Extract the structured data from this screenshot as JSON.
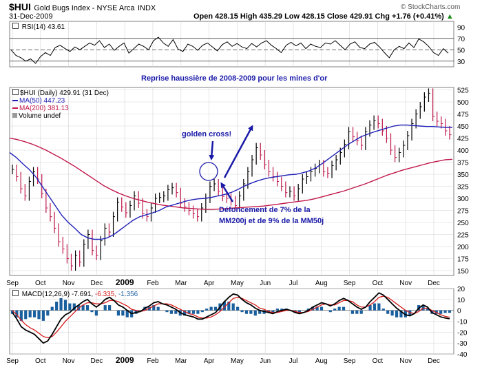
{
  "header": {
    "symbol": "$HUI",
    "name": "Gold Bugs Index - NYSE Arca",
    "exchange": "INDX",
    "date": "31-Dec-2009",
    "ohlc_text": "Open 428.15  High 435.29  Low 428.15  Close 429.91  Chg +1.76 (+0.41%)",
    "ohlc_arrow": "▲",
    "watermark": "© StockCharts.com"
  },
  "colors": {
    "price": "#000000",
    "ma50": "#1f1fb8",
    "ma200": "#c0174a",
    "macd_signal": "#d61a1a",
    "histogram": "#1a5f9e",
    "annotation": "#1a1aa8",
    "grid": "#d4d4d4"
  },
  "rsi_panel": {
    "label": "RSI(14) 43.61",
    "icon": "checkbox-icon"
  },
  "price_panel": {
    "title_annotation": "Reprise haussière de 2008-2009 pour les mines d'or",
    "legend": {
      "price": "$HUI (Daily) 429.91 (31 Dec)",
      "ma50": "MA(50) 447.23",
      "ma200": "MA(200) 381.13",
      "volume": "Volume undef"
    },
    "annotation_golden": "golden cross!",
    "annotation_break_1": "Défoncement de 7% de la",
    "annotation_break_2": "MM200j et de 9% de la MM50j"
  },
  "macd_panel": {
    "label_prefix": "MACD(12,26,9)",
    "macd_value": "-7.691,",
    "signal_value": "-6.335,",
    "hist_value": "-1.356"
  },
  "chart_data": [
    {
      "type": "line",
      "name": "RSI(14)",
      "ylim": [
        20,
        100
      ],
      "y_ticks": [
        "90",
        "70",
        "50",
        "30"
      ],
      "x_ticks": [
        "Sep",
        "Oct",
        "Nov",
        "Dec",
        "2009",
        "Feb",
        "Mar",
        "Apr",
        "May",
        "Jun",
        "Jul",
        "Aug",
        "Sep",
        "Oct",
        "Nov",
        "Dec"
      ],
      "reference_lines": [
        70,
        50,
        30
      ],
      "values": [
        50,
        40,
        36,
        30,
        34,
        26,
        38,
        45,
        40,
        54,
        58,
        52,
        47,
        55,
        50,
        56,
        62,
        58,
        66,
        54,
        60,
        49,
        56,
        62,
        44,
        52,
        60,
        56,
        50,
        66,
        72,
        62,
        56,
        68,
        51,
        47,
        60,
        56,
        49,
        58,
        62,
        55,
        48,
        59,
        64,
        56,
        61,
        55,
        52,
        61,
        55,
        62,
        66,
        58,
        52,
        45,
        58,
        63,
        57,
        62,
        52,
        60,
        56,
        54,
        62,
        60,
        66,
        58,
        50,
        60,
        64,
        54,
        52,
        60,
        63,
        55,
        45,
        36,
        50,
        56,
        52,
        62,
        54,
        69,
        64,
        56,
        45,
        40,
        52,
        44
      ]
    },
    {
      "type": "line",
      "name": "$HUI (Daily)",
      "ylim": [
        140,
        530
      ],
      "y_ticks": [
        "525",
        "500",
        "475",
        "450",
        "425",
        "400",
        "375",
        "350",
        "325",
        "300",
        "275",
        "250",
        "225",
        "200",
        "175",
        "150"
      ],
      "x_ticks": [
        "Sep",
        "Oct",
        "Nov",
        "Dec",
        "2009",
        "Feb",
        "Mar",
        "Apr",
        "May",
        "Jun",
        "Jul",
        "Aug",
        "Sep",
        "Oct",
        "Nov",
        "Dec"
      ],
      "close": [
        360,
        345,
        320,
        305,
        335,
        355,
        340,
        310,
        280,
        262,
        238,
        210,
        195,
        175,
        160,
        182,
        168,
        205,
        225,
        192,
        182,
        212,
        238,
        230,
        262,
        292,
        282,
        270,
        285,
        305,
        290,
        268,
        262,
        280,
        300,
        302,
        305,
        318,
        322,
        312,
        290,
        282,
        275,
        268,
        262,
        280,
        300,
        325,
        330,
        315,
        304,
        300,
        295,
        285,
        305,
        330,
        355,
        380,
        405,
        390,
        370,
        355,
        345,
        335,
        325,
        312,
        315,
        305,
        320,
        340,
        345,
        355,
        362,
        370,
        355,
        352,
        368,
        380,
        395,
        412,
        438,
        428,
        420,
        410,
        438,
        452,
        462,
        455,
        440,
        425,
        400,
        385,
        395,
        410,
        430,
        455,
        475,
        490,
        510,
        518,
        470,
        460,
        455,
        440,
        432
      ],
      "ma50": [
        395,
        385,
        372,
        360,
        345,
        325,
        305,
        285,
        265,
        250,
        238,
        225,
        218,
        215,
        215,
        218,
        225,
        235,
        245,
        255,
        262,
        266,
        270,
        275,
        282,
        286,
        290,
        294,
        297,
        299,
        300,
        302,
        305,
        308,
        312,
        318,
        325,
        331,
        336,
        340,
        343,
        345,
        347,
        349,
        350,
        353,
        357,
        363,
        372,
        382,
        392,
        402,
        412,
        420,
        428,
        433,
        438,
        442,
        446,
        450,
        452,
        452,
        451,
        450,
        449,
        449,
        448,
        447,
        447
      ],
      "ma200": [
        425,
        422,
        418,
        413,
        407,
        400,
        392,
        384,
        375,
        366,
        356,
        346,
        336,
        326,
        318,
        311,
        305,
        300,
        296,
        292,
        289,
        286,
        284,
        282,
        280,
        279,
        278,
        277,
        277,
        278,
        279,
        280,
        281,
        282,
        283,
        284,
        286,
        288,
        290,
        292,
        294,
        296,
        299,
        303,
        307,
        311,
        315,
        320,
        325,
        330,
        336,
        342,
        348,
        353,
        358,
        362,
        366,
        370,
        374,
        377,
        380,
        381
      ]
    },
    {
      "type": "line",
      "name": "MACD(12,26,9)",
      "ylim": [
        -40,
        20
      ],
      "y_ticks": [
        "20",
        "10",
        "0",
        "-10",
        "-20",
        "-30",
        "-40"
      ],
      "x_ticks": [
        "Sep",
        "Oct",
        "Nov",
        "Dec",
        "2009",
        "Feb",
        "Mar",
        "Apr",
        "May",
        "Jun",
        "Jul",
        "Aug",
        "Sep",
        "Oct",
        "Nov",
        "Dec"
      ],
      "macd": [
        -2,
        -8,
        -15,
        -18,
        -20,
        -22,
        -26,
        -30,
        -28,
        -22,
        -15,
        -8,
        -4,
        -2,
        2,
        5,
        8,
        10,
        6,
        3,
        6,
        10,
        12,
        9,
        5,
        3,
        0,
        -3,
        -2,
        -1,
        2,
        4,
        7,
        8,
        6,
        5,
        3,
        1,
        -2,
        -4,
        -5,
        -6,
        -8,
        -8,
        -6,
        -4,
        -2,
        3,
        8,
        12,
        15,
        14,
        10,
        7,
        5,
        2,
        0,
        -1,
        -2,
        -3,
        -1,
        0,
        1,
        0,
        -2,
        -3,
        -2,
        0,
        3,
        5,
        7,
        6,
        4,
        6,
        9,
        11,
        9,
        6,
        3,
        1,
        3,
        8,
        12,
        16,
        14,
        10,
        6,
        2,
        -1,
        -4,
        -5,
        -3,
        2,
        5,
        3,
        -2,
        -4,
        -6,
        -7,
        -7.7
      ],
      "signal": [
        0,
        -4,
        -9,
        -13,
        -16,
        -18,
        -21,
        -24,
        -25,
        -24,
        -20,
        -15,
        -10,
        -6,
        -2,
        2,
        5,
        7,
        7,
        6,
        6,
        7,
        9,
        9,
        8,
        6,
        4,
        1,
        0,
        -1,
        0,
        2,
        4,
        6,
        6,
        6,
        5,
        3,
        1,
        -1,
        -3,
        -4,
        -6,
        -7,
        -7,
        -6,
        -4,
        -1,
        3,
        7,
        11,
        12,
        11,
        9,
        7,
        5,
        2,
        1,
        -1,
        -2,
        -2,
        -1,
        0,
        0,
        -1,
        -2,
        -2,
        -1,
        1,
        3,
        5,
        6,
        5,
        5,
        7,
        9,
        9,
        8,
        5,
        3,
        3,
        5,
        8,
        12,
        13,
        12,
        9,
        6,
        3,
        0,
        -2,
        -3,
        -1,
        2,
        2,
        0,
        -2,
        -4,
        -5.5,
        -6.3
      ],
      "hist_last": -1.356
    }
  ]
}
